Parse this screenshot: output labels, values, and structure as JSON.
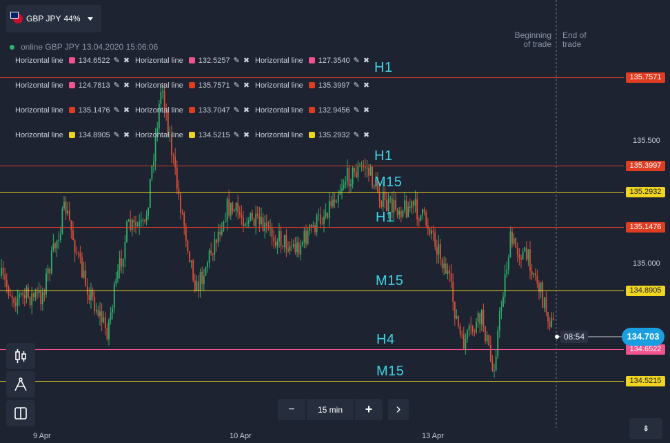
{
  "asset": {
    "pair": "GBP JPY",
    "payout": "44%"
  },
  "status": {
    "online_text": "online GBP JPY",
    "timestamp": "13.04.2020 15:06:06"
  },
  "drawings": [
    [
      {
        "label": "Horizontal line",
        "value": "134.6522",
        "color": "#f2538f"
      },
      {
        "label": "Horizontal line",
        "value": "132.5257",
        "color": "#f2538f"
      },
      {
        "label": "Horizontal line",
        "value": "127.3540",
        "color": "#f2538f"
      }
    ],
    [
      {
        "label": "Horizontal line",
        "value": "124.7813",
        "color": "#f2538f"
      },
      {
        "label": "Horizontal line",
        "value": "135.7571",
        "color": "#e03c20"
      },
      {
        "label": "Horizontal line",
        "value": "135.3997",
        "color": "#e03c20"
      }
    ],
    [
      {
        "label": "Horizontal line",
        "value": "135.1476",
        "color": "#e03c20"
      },
      {
        "label": "Horizontal line",
        "value": "133.7047",
        "color": "#e03c20"
      },
      {
        "label": "Horizontal line",
        "value": "132.9456",
        "color": "#e03c20"
      }
    ],
    [
      {
        "label": "Horizontal line",
        "value": "134.8905",
        "color": "#f0d41e"
      },
      {
        "label": "Horizontal line",
        "value": "134.5215",
        "color": "#f0d41e"
      },
      {
        "label": "Horizontal line",
        "value": "135.2932",
        "color": "#f0d41e"
      }
    ]
  ],
  "levels": [
    {
      "label": "H1",
      "value": "135.7571",
      "color": "#e03c20",
      "text_color": "#ffffff"
    },
    {
      "label": "H1",
      "value": "135.3997",
      "color": "#e03c20",
      "text_color": "#ffffff"
    },
    {
      "label": "M15",
      "value": "135.2932",
      "color": "#f0d41e",
      "text_color": "#1d2331"
    },
    {
      "label": "H1",
      "value": "135.1476",
      "color": "#e03c20",
      "text_color": "#ffffff"
    },
    {
      "label": "M15",
      "value": "134.8905",
      "color": "#f0d41e",
      "text_color": "#1d2331"
    },
    {
      "label": "H4",
      "value": "134.6522",
      "color": "#f2538f",
      "text_color": "#ffffff"
    },
    {
      "label": "M15",
      "value": "134.5215",
      "color": "#f0d41e",
      "text_color": "#1d2331"
    }
  ],
  "axis": {
    "tick_labels": [
      "135.500",
      "135.000"
    ],
    "dates": [
      "9 Apr",
      "10 Apr",
      "13 Apr"
    ]
  },
  "current": {
    "price": "134.703",
    "timer": "08:54"
  },
  "trade": {
    "begin_label": [
      "Beginning",
      "of trade"
    ],
    "end_label": [
      "End of",
      "trade"
    ]
  },
  "controls": {
    "minus": "−",
    "timeframe": "15 min",
    "plus": "+",
    "next": "›"
  },
  "icons": {
    "candles": "candlestick-icon",
    "drawing": "compass-icon",
    "layout": "split-layout-icon",
    "collapse": "collapse-icon"
  },
  "colors": {
    "background": "#1d2331",
    "bull": "#2fb36b",
    "bear": "#e0523a",
    "accent": "#1aa0e0",
    "label_text": "#3fd3e6"
  }
}
